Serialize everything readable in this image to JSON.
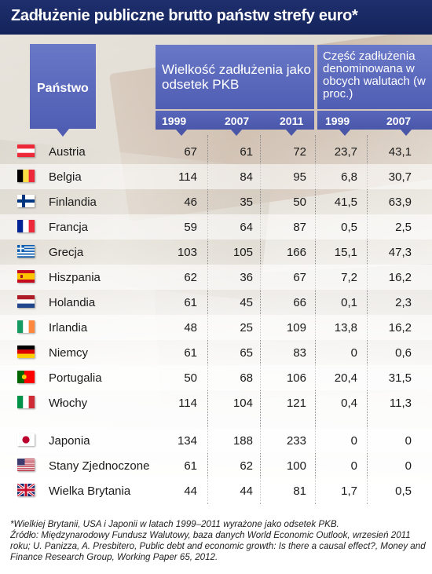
{
  "title": "Zadłużenie publiczne brutto państw strefy euro*",
  "headers": {
    "country": "Państwo",
    "debt_group": "Wielkość zadłużenia jako odsetek PKB",
    "fx_group": "Część zadłużenia denominowana w obcych walutach (w proc.)",
    "debt_years": [
      "1999",
      "2007",
      "2011"
    ],
    "fx_years": [
      "1999",
      "2007"
    ]
  },
  "rows": [
    {
      "country": "Austria",
      "flag": "austria-flag",
      "debt_1999": "67",
      "debt_2007": "61",
      "debt_2011": "72",
      "fx_1999": "23,7",
      "fx_2007": "43,1"
    },
    {
      "country": "Belgia",
      "flag": "belgium-flag",
      "debt_1999": "114",
      "debt_2007": "84",
      "debt_2011": "95",
      "fx_1999": "6,8",
      "fx_2007": "30,7"
    },
    {
      "country": "Finlandia",
      "flag": "finland-flag",
      "debt_1999": "46",
      "debt_2007": "35",
      "debt_2011": "50",
      "fx_1999": "41,5",
      "fx_2007": "63,9"
    },
    {
      "country": "Francja",
      "flag": "france-flag",
      "debt_1999": "59",
      "debt_2007": "64",
      "debt_2011": "87",
      "fx_1999": "0,5",
      "fx_2007": "2,5"
    },
    {
      "country": "Grecja",
      "flag": "greece-flag",
      "debt_1999": "103",
      "debt_2007": "105",
      "debt_2011": "166",
      "fx_1999": "15,1",
      "fx_2007": "47,3"
    },
    {
      "country": "Hiszpania",
      "flag": "spain-flag",
      "debt_1999": "62",
      "debt_2007": "36",
      "debt_2011": "67",
      "fx_1999": "7,2",
      "fx_2007": "16,2"
    },
    {
      "country": "Holandia",
      "flag": "netherlands-flag",
      "debt_1999": "61",
      "debt_2007": "45",
      "debt_2011": "66",
      "fx_1999": "0,1",
      "fx_2007": "2,3"
    },
    {
      "country": "Irlandia",
      "flag": "ireland-flag",
      "debt_1999": "48",
      "debt_2007": "25",
      "debt_2011": "109",
      "fx_1999": "13,8",
      "fx_2007": "16,2"
    },
    {
      "country": "Niemcy",
      "flag": "germany-flag",
      "debt_1999": "61",
      "debt_2007": "65",
      "debt_2011": "83",
      "fx_1999": "0",
      "fx_2007": "0,6"
    },
    {
      "country": "Portugalia",
      "flag": "portugal-flag",
      "debt_1999": "50",
      "debt_2007": "68",
      "debt_2011": "106",
      "fx_1999": "20,4",
      "fx_2007": "31,5"
    },
    {
      "country": "Włochy",
      "flag": "italy-flag",
      "debt_1999": "114",
      "debt_2007": "104",
      "debt_2011": "121",
      "fx_1999": "0,4",
      "fx_2007": "11,3"
    },
    {
      "country": "Japonia",
      "flag": "japan-flag",
      "debt_1999": "134",
      "debt_2007": "188",
      "debt_2011": "233",
      "fx_1999": "0",
      "fx_2007": "0"
    },
    {
      "country": "Stany Zjednoczone",
      "flag": "usa-flag",
      "debt_1999": "61",
      "debt_2007": "62",
      "debt_2011": "100",
      "fx_1999": "0",
      "fx_2007": "0"
    },
    {
      "country": "Wielka Brytania",
      "flag": "uk-flag",
      "debt_1999": "44",
      "debt_2007": "44",
      "debt_2011": "81",
      "fx_1999": "1,7",
      "fx_2007": "0,5"
    }
  ],
  "footnote": {
    "line1": "*Wielkiej Brytanii, USA i Japonii w latach 1999–2011 wyrażone jako odsetek PKB.",
    "line2": "Źródło: Międzynarodowy Fundusz Walutowy, baza danych World Economic Outlook, wrzesień 2011 roku; U. Panizza, A. Presbitero, Public debt and economic growth: Is there a causal effect?, Money and Finance Research Group, Working Paper 65, 2012."
  }
}
